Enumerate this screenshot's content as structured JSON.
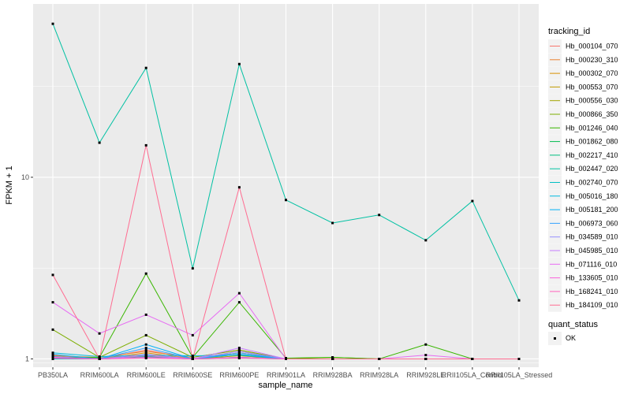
{
  "chart_data": {
    "type": "line",
    "xlabel": "sample_name",
    "ylabel": "FPKM + 1",
    "y_scale": "log10",
    "ylim": [
      0.9,
      90
    ],
    "y_ticks": [
      {
        "value": 1,
        "label": "1"
      },
      {
        "value": 10,
        "label": "10"
      }
    ],
    "grid": true,
    "legend_position": "right",
    "categories": [
      "PB350LA",
      "RRIM600LA",
      "RRIM600LE",
      "RRIM600SE",
      "RRIM600PE",
      "RRIM901LA",
      "RRIM928BA",
      "RRIM928LA",
      "RRIM928LE",
      "RRII105LA_Control",
      "RRII105LA_Stressed"
    ],
    "legend": {
      "title": "tracking_id",
      "colors": [
        "#F8766D",
        "#EA8331",
        "#D89000",
        "#C09B00",
        "#A3A500",
        "#7CAE00",
        "#39B600",
        "#00BB4E",
        "#00BF7D",
        "#00C1A3",
        "#00BFC4",
        "#00BAE0",
        "#00B0F6",
        "#35A2FF",
        "#9590FF",
        "#C77CFF",
        "#E76BF3",
        "#FA62DB",
        "#FF62BC",
        "#FF6C91"
      ],
      "marker_title": "quant_status",
      "marker_label": "OK"
    },
    "series": [
      {
        "name": "Hb_000104_070",
        "values": [
          1.05,
          1.0,
          1.12,
          1.0,
          1.1,
          1.0,
          1.0,
          1.0,
          1.0,
          1.0,
          1.0
        ]
      },
      {
        "name": "Hb_000230_310",
        "values": [
          1.04,
          1.02,
          1.1,
          1.02,
          1.12,
          1.0,
          1.0,
          1.0,
          1.0,
          1.0,
          1.0
        ]
      },
      {
        "name": "Hb_000302_070",
        "values": [
          1.03,
          1.0,
          1.08,
          1.0,
          1.08,
          1.0,
          1.0,
          1.0,
          1.0,
          1.0,
          1.0
        ]
      },
      {
        "name": "Hb_000553_070",
        "values": [
          1.02,
          1.0,
          1.05,
          1.0,
          1.06,
          1.0,
          1.0,
          1.0,
          1.0,
          1.0,
          1.0
        ]
      },
      {
        "name": "Hb_000556_030",
        "values": [
          1.01,
          1.0,
          1.04,
          1.0,
          1.04,
          1.0,
          1.0,
          1.0,
          1.0,
          1.0,
          1.0
        ]
      },
      {
        "name": "Hb_000866_350",
        "values": [
          1.45,
          1.02,
          1.35,
          1.02,
          1.12,
          1.0,
          1.02,
          1.0,
          1.0,
          1.0,
          1.0
        ]
      },
      {
        "name": "Hb_001246_040",
        "values": [
          1.02,
          1.02,
          2.95,
          1.02,
          2.05,
          1.01,
          1.02,
          1.0,
          1.2,
          1.0,
          1.0
        ]
      },
      {
        "name": "Hb_001862_080",
        "values": [
          1.0,
          1.0,
          1.02,
          1.0,
          1.01,
          1.0,
          1.0,
          1.0,
          1.0,
          1.0,
          1.0
        ]
      },
      {
        "name": "Hb_002217_410",
        "values": [
          1.0,
          1.01,
          1.03,
          1.0,
          1.02,
          1.0,
          1.0,
          1.0,
          1.0,
          1.0,
          1.0
        ]
      },
      {
        "name": "Hb_002447_020",
        "values": [
          70.0,
          15.5,
          40.0,
          3.15,
          42.0,
          7.5,
          5.6,
          6.2,
          4.5,
          7.4,
          2.1
        ]
      },
      {
        "name": "Hb_002740_070",
        "values": [
          1.0,
          1.0,
          1.02,
          1.0,
          1.02,
          1.0,
          1.0,
          1.0,
          1.0,
          1.0,
          1.0
        ]
      },
      {
        "name": "Hb_005016_180",
        "values": [
          1.08,
          1.03,
          1.05,
          1.04,
          1.05,
          1.0,
          1.0,
          1.0,
          1.0,
          1.0,
          1.0
        ]
      },
      {
        "name": "Hb_005181_200",
        "values": [
          1.06,
          1.0,
          1.2,
          1.0,
          1.06,
          1.0,
          1.0,
          1.0,
          1.0,
          1.0,
          1.0
        ]
      },
      {
        "name": "Hb_006973_060",
        "values": [
          1.03,
          1.0,
          1.15,
          1.0,
          1.08,
          1.0,
          1.0,
          1.0,
          1.0,
          1.0,
          1.0
        ]
      },
      {
        "name": "Hb_034589_010",
        "values": [
          1.02,
          1.0,
          1.06,
          1.0,
          1.1,
          1.0,
          1.0,
          1.0,
          1.0,
          1.0,
          1.0
        ]
      },
      {
        "name": "Hb_045985_010",
        "values": [
          1.01,
          1.0,
          1.04,
          1.0,
          1.15,
          1.0,
          1.0,
          1.0,
          1.0,
          1.0,
          1.0
        ]
      },
      {
        "name": "Hb_071116_010",
        "values": [
          2.05,
          1.38,
          1.75,
          1.35,
          2.3,
          1.0,
          1.0,
          1.0,
          1.05,
          1.0,
          1.0
        ]
      },
      {
        "name": "Hb_133605_010",
        "values": [
          1.02,
          1.0,
          1.02,
          1.0,
          1.02,
          1.0,
          1.0,
          1.0,
          1.0,
          1.0,
          1.0
        ]
      },
      {
        "name": "Hb_168241_010",
        "values": [
          1.01,
          1.0,
          1.01,
          1.0,
          1.01,
          1.0,
          1.0,
          1.0,
          1.0,
          1.0,
          1.0
        ]
      },
      {
        "name": "Hb_184109_010",
        "values": [
          2.9,
          1.0,
          15.0,
          1.0,
          8.8,
          1.0,
          1.0,
          1.0,
          1.0,
          1.0,
          1.0
        ]
      }
    ]
  }
}
